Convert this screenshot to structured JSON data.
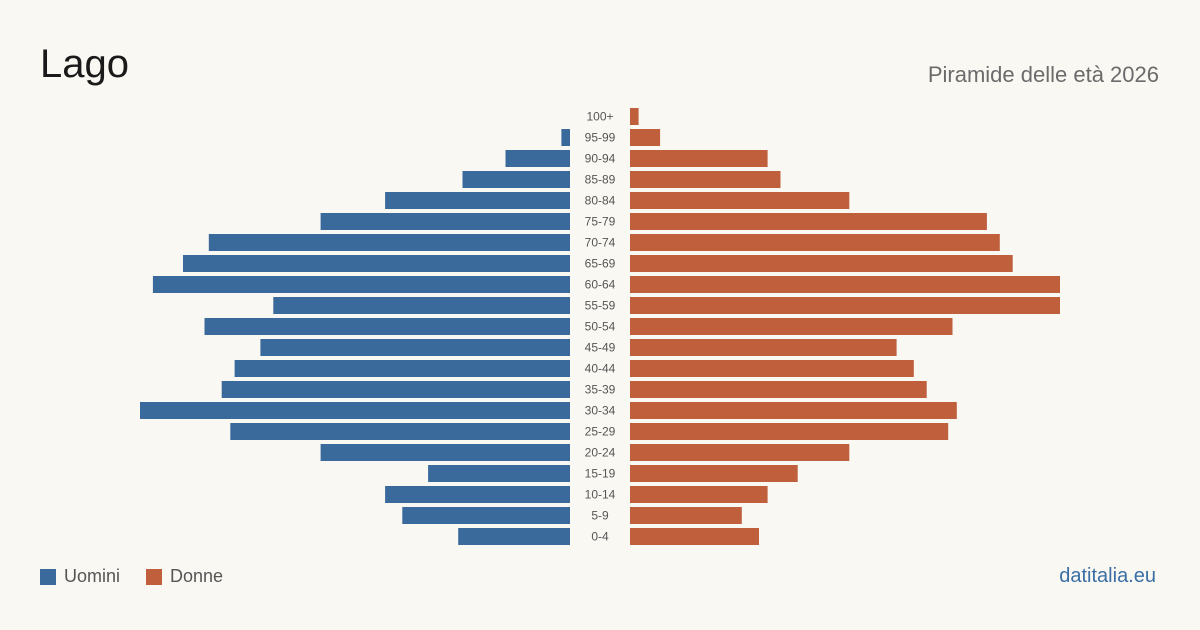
{
  "header": {
    "title": "Lago",
    "subtitle": "Piramide delle età 2026"
  },
  "footer": {
    "site": "datitalia.eu"
  },
  "chart_data": {
    "type": "bar",
    "orientation": "horizontal-pyramid",
    "categories": [
      "0-4",
      "5-9",
      "10-14",
      "15-19",
      "20-24",
      "25-29",
      "30-34",
      "35-39",
      "40-44",
      "45-49",
      "50-54",
      "55-59",
      "60-64",
      "65-69",
      "70-74",
      "75-79",
      "80-84",
      "85-89",
      "90-94",
      "95-99",
      "100+"
    ],
    "series": [
      {
        "name": "Uomini",
        "color": "#3a6a9b",
        "values": [
          26,
          39,
          43,
          33,
          58,
          79,
          100,
          81,
          78,
          72,
          85,
          69,
          97,
          90,
          84,
          58,
          43,
          25,
          15,
          2,
          0
        ]
      },
      {
        "name": "Donne",
        "color": "#bf5f3c",
        "values": [
          30,
          26,
          32,
          39,
          51,
          74,
          76,
          69,
          66,
          62,
          75,
          100,
          100,
          89,
          86,
          83,
          51,
          35,
          32,
          7,
          2
        ]
      }
    ],
    "grid": false,
    "legend_position": "bottom-left"
  }
}
